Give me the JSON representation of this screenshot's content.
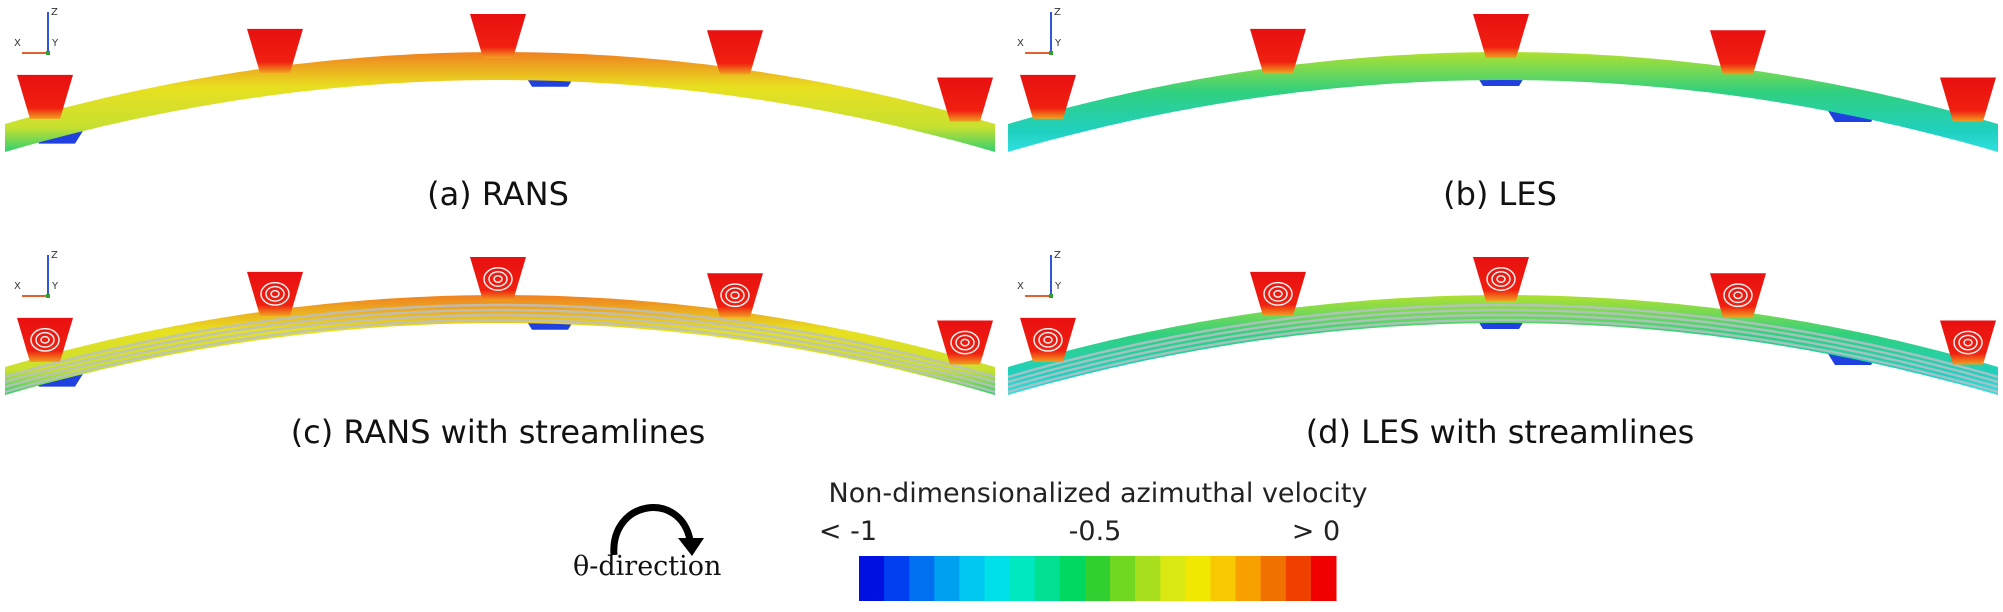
{
  "panels": [
    {
      "caption": "(a) RANS"
    },
    {
      "caption": "(b) LES"
    },
    {
      "caption": "(c) RANS with streamlines"
    },
    {
      "caption": "(d) LES with streamlines"
    }
  ],
  "triad": {
    "x": "X",
    "y": "Y",
    "z": "Z"
  },
  "colorbar": {
    "title": "Non-dimensionalized azimuthal velocity",
    "labels": [
      "< -1",
      "-0.5",
      "> 0"
    ]
  },
  "direction": {
    "label": "θ-direction"
  }
}
